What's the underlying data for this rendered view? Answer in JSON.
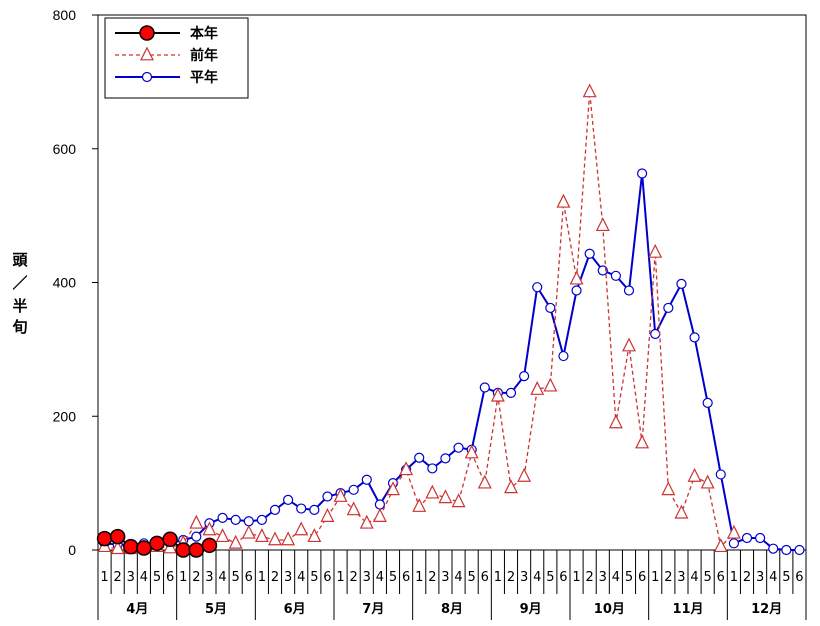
{
  "chart_data": {
    "type": "line",
    "ylabel": [
      "頭",
      "／",
      "半",
      "旬"
    ],
    "ylim": [
      0,
      800
    ],
    "yticks": [
      0,
      200,
      400,
      600,
      800
    ],
    "x_ticks": [
      "1",
      "2",
      "3",
      "4",
      "5",
      "6",
      "1",
      "2",
      "3",
      "4",
      "5",
      "6",
      "1",
      "2",
      "3",
      "4",
      "5",
      "6",
      "1",
      "2",
      "3",
      "4",
      "5",
      "6",
      "1",
      "2",
      "3",
      "4",
      "5",
      "6",
      "1",
      "2",
      "3",
      "4",
      "5",
      "6",
      "1",
      "2",
      "3",
      "4",
      "5",
      "6",
      "1",
      "2",
      "3",
      "4",
      "5",
      "6",
      "1",
      "2",
      "3",
      "4",
      "5",
      "6"
    ],
    "months": [
      "4月",
      "5月",
      "6月",
      "7月",
      "8月",
      "9月",
      "10月",
      "11月",
      "12月"
    ],
    "grid": false,
    "legend": "top-left",
    "series": [
      {
        "name": "本年",
        "color": "#000000",
        "marker_fill": "#ff0000",
        "marker": "circle",
        "values": [
          17,
          20,
          5,
          3,
          10,
          16,
          0,
          0,
          7
        ]
      },
      {
        "name": "前年",
        "color": "#cc3333",
        "marker_fill": "#ffffff",
        "marker": "triangle",
        "values": [
          5,
          2,
          2,
          3,
          5,
          3,
          10,
          40,
          30,
          20,
          10,
          25,
          20,
          15,
          15,
          30,
          20,
          50,
          80,
          60,
          40,
          50,
          90,
          120,
          65,
          85,
          78,
          72,
          145,
          100,
          230,
          93,
          110,
          240,
          245,
          520,
          405,
          685,
          485,
          190,
          305,
          160,
          445,
          90,
          55,
          110,
          100,
          5,
          25,
          null,
          null,
          null,
          null,
          null
        ]
      },
      {
        "name": "平年",
        "color": "#0000cc",
        "marker_fill": "#ffffff",
        "marker": "circle",
        "values": [
          10,
          8,
          8,
          10,
          10,
          10,
          15,
          20,
          40,
          48,
          45,
          43,
          45,
          60,
          75,
          62,
          60,
          80,
          85,
          90,
          105,
          68,
          100,
          120,
          138,
          122,
          137,
          153,
          150,
          243,
          235,
          235,
          260,
          393,
          362,
          290,
          388,
          443,
          418,
          410,
          388,
          563,
          323,
          362,
          398,
          318,
          220,
          113,
          10,
          18,
          18,
          2,
          0,
          0
        ]
      }
    ]
  }
}
